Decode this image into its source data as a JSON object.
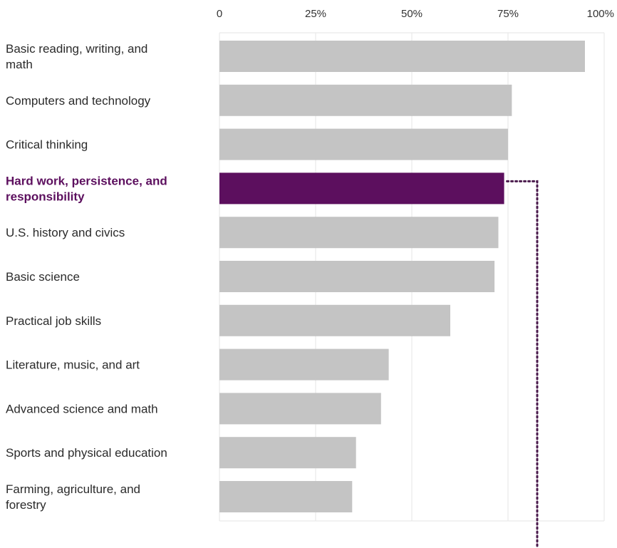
{
  "chart_data": {
    "type": "bar",
    "orientation": "horizontal",
    "title": "",
    "xlabel": "",
    "ylabel": "",
    "xlim": [
      0,
      100
    ],
    "x_ticks": [
      {
        "value": 0,
        "label": "0"
      },
      {
        "value": 25,
        "label": "25%"
      },
      {
        "value": 50,
        "label": "50%"
      },
      {
        "value": 75,
        "label": "75%"
      },
      {
        "value": 100,
        "label": "100%"
      }
    ],
    "grid": true,
    "legend": "none",
    "categories": [
      "Basic reading, writing, and math",
      "Computers and technology",
      "Critical thinking",
      "Hard work, persistence, and responsibility",
      "U.S. history and civics",
      "Basic science",
      "Practical job skills",
      "Literature, music, and art",
      "Advanced science and math",
      "Sports and physical education",
      "Farming, agriculture, and forestry"
    ],
    "values": [
      95,
      76,
      75,
      74,
      72.5,
      71.5,
      60,
      44,
      42,
      35.5,
      34.5
    ],
    "highlight_index": 3,
    "colors": {
      "bar": "#c4c4c4",
      "highlight": "#5c0f5e",
      "grid": "#e6e6e6",
      "text": "#2b2b2b",
      "connector": "#4a1a4c"
    }
  }
}
